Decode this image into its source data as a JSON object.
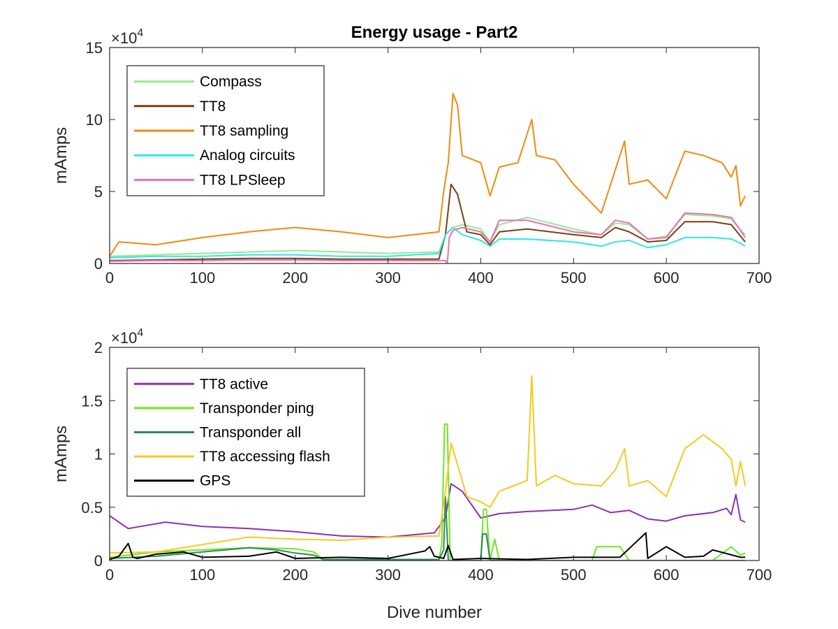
{
  "chart_data": [
    {
      "type": "line",
      "title": "Energy usage - Part2",
      "xlabel": "",
      "ylabel": "mAmps",
      "xlim": [
        0,
        700
      ],
      "ylim": [
        0,
        150000
      ],
      "xticks": [
        0,
        100,
        200,
        300,
        400,
        500,
        600,
        700
      ],
      "xtick_labels": [
        "0",
        "100",
        "200",
        "300",
        "400",
        "500",
        "600",
        "700"
      ],
      "yticks": [
        0,
        50000,
        100000,
        150000
      ],
      "ytick_labels": [
        "0",
        "5",
        "10",
        "15"
      ],
      "exponent_label": "×10",
      "exponent_power": "4",
      "legend_position": "top-left",
      "series": [
        {
          "name": "Compass",
          "color": "#90ee90",
          "x": [
            0,
            50,
            100,
            150,
            200,
            250,
            300,
            355,
            362,
            370,
            380,
            400,
            410,
            420,
            450,
            500,
            530,
            545,
            560,
            580,
            600,
            620,
            650,
            670,
            680,
            685
          ],
          "y": [
            5000,
            6000,
            7000,
            8000,
            9000,
            8000,
            7000,
            8000,
            20000,
            25000,
            27000,
            24000,
            15000,
            27000,
            32000,
            24000,
            20000,
            28000,
            27000,
            17000,
            19000,
            34000,
            33000,
            31000,
            23000,
            20000
          ]
        },
        {
          "name": "TT8",
          "color": "#7b3f10",
          "x": [
            0,
            50,
            100,
            150,
            200,
            250,
            300,
            355,
            362,
            368,
            375,
            385,
            400,
            410,
            420,
            450,
            500,
            530,
            545,
            560,
            580,
            600,
            620,
            650,
            670,
            680,
            685
          ],
          "y": [
            2000,
            2500,
            3000,
            3500,
            3500,
            3000,
            3000,
            3000,
            20000,
            55000,
            48000,
            22000,
            20000,
            13000,
            22000,
            24000,
            20000,
            18000,
            25000,
            22000,
            15000,
            16000,
            29000,
            29000,
            27000,
            19000,
            15000
          ]
        },
        {
          "name": "TT8 sampling",
          "color": "#f08a10",
          "x": [
            0,
            10,
            50,
            100,
            150,
            200,
            250,
            300,
            355,
            360,
            365,
            370,
            375,
            380,
            400,
            410,
            420,
            440,
            455,
            460,
            480,
            500,
            530,
            540,
            555,
            560,
            580,
            600,
            620,
            640,
            660,
            670,
            675,
            680,
            685
          ],
          "y": [
            5000,
            15000,
            13000,
            18000,
            22000,
            25000,
            22000,
            18000,
            22000,
            50000,
            70000,
            118000,
            110000,
            75000,
            70000,
            47000,
            67000,
            70000,
            100000,
            75000,
            72000,
            55000,
            35000,
            55000,
            85000,
            55000,
            58000,
            45000,
            78000,
            75000,
            70000,
            60000,
            68000,
            40000,
            47000
          ]
        },
        {
          "name": "Analog circuits",
          "color": "#2ee6ec",
          "x": [
            0,
            50,
            100,
            150,
            200,
            250,
            300,
            355,
            362,
            370,
            380,
            400,
            410,
            420,
            450,
            500,
            530,
            545,
            560,
            580,
            600,
            620,
            650,
            670,
            680,
            685
          ],
          "y": [
            4000,
            5000,
            5000,
            6000,
            6000,
            5000,
            5000,
            7000,
            20000,
            25000,
            20000,
            16000,
            12000,
            17000,
            17000,
            15000,
            12000,
            15000,
            16000,
            11000,
            13000,
            18000,
            18000,
            17000,
            14000,
            12000
          ]
        },
        {
          "name": "TT8 LPSleep",
          "color": "#ee6fb4",
          "x": [
            0,
            50,
            100,
            150,
            200,
            250,
            300,
            362,
            364,
            366,
            370,
            380,
            400,
            410,
            420,
            450,
            500,
            530,
            545,
            560,
            580,
            600,
            620,
            650,
            670,
            680,
            685
          ],
          "y": [
            1500,
            2000,
            2000,
            2500,
            2500,
            2000,
            2000,
            2000,
            0,
            18000,
            23000,
            25000,
            22000,
            15000,
            30000,
            30000,
            22000,
            20000,
            30000,
            28000,
            17000,
            18000,
            35000,
            34000,
            32000,
            23000,
            18000
          ]
        }
      ]
    },
    {
      "type": "line",
      "title": "",
      "xlabel": "Dive number",
      "ylabel": "mAmps",
      "xlim": [
        0,
        700
      ],
      "ylim": [
        0,
        20000
      ],
      "xticks": [
        0,
        100,
        200,
        300,
        400,
        500,
        600,
        700
      ],
      "xtick_labels": [
        "0",
        "100",
        "200",
        "300",
        "400",
        "500",
        "600",
        "700"
      ],
      "yticks": [
        0,
        5000,
        10000,
        15000,
        20000
      ],
      "ytick_labels": [
        "0",
        "0.5",
        "1",
        "1.5",
        "2"
      ],
      "exponent_label": "×10",
      "exponent_power": "4",
      "legend_position": "top-left",
      "series": [
        {
          "name": "TT8 active",
          "color": "#8e2fb8",
          "x": [
            0,
            20,
            60,
            100,
            150,
            200,
            250,
            300,
            350,
            362,
            368,
            380,
            400,
            410,
            420,
            450,
            500,
            520,
            540,
            560,
            580,
            600,
            620,
            650,
            665,
            670,
            675,
            680,
            685
          ],
          "y": [
            4200,
            3000,
            3600,
            3200,
            3000,
            2700,
            2300,
            2200,
            2600,
            4000,
            7200,
            6500,
            4000,
            4200,
            4400,
            4600,
            4800,
            5200,
            4500,
            4700,
            3900,
            3700,
            4200,
            4500,
            4900,
            4300,
            6200,
            3800,
            3600
          ]
        },
        {
          "name": "Transponder ping",
          "color": "#6ee81f",
          "x": [
            0,
            50,
            100,
            150,
            200,
            220,
            230,
            300,
            355,
            358,
            361,
            364,
            367,
            400,
            403,
            406,
            410,
            415,
            420,
            520,
            525,
            550,
            560,
            600,
            650,
            670,
            680,
            685
          ],
          "y": [
            300,
            800,
            1000,
            1200,
            1100,
            800,
            100,
            100,
            100,
            1500,
            12800,
            12800,
            0,
            0,
            4800,
            4800,
            0,
            2000,
            0,
            0,
            1300,
            1300,
            0,
            0,
            0,
            1300,
            500,
            700
          ]
        },
        {
          "name": "Transponder all",
          "color": "#2e8a57",
          "x": [
            0,
            50,
            100,
            150,
            180,
            200,
            220,
            230,
            300,
            355,
            360,
            362,
            365,
            400,
            402,
            406,
            410,
            420,
            685
          ],
          "y": [
            200,
            400,
            800,
            1200,
            1000,
            700,
            500,
            100,
            100,
            100,
            1000,
            6000,
            0,
            0,
            2500,
            2500,
            0,
            0,
            0
          ]
        },
        {
          "name": "TT8 accessing flash",
          "color": "#fbc81e",
          "x": [
            0,
            50,
            100,
            150,
            200,
            250,
            300,
            355,
            362,
            368,
            375,
            385,
            400,
            410,
            420,
            450,
            455,
            460,
            480,
            500,
            530,
            545,
            555,
            560,
            580,
            600,
            620,
            640,
            660,
            670,
            675,
            680,
            685
          ],
          "y": [
            700,
            800,
            1500,
            2200,
            2000,
            1900,
            2200,
            2300,
            6500,
            11000,
            9000,
            6000,
            5500,
            5000,
            6500,
            7500,
            17300,
            7000,
            8000,
            7200,
            7000,
            8500,
            10500,
            7000,
            7500,
            6000,
            10500,
            11800,
            10500,
            9500,
            7000,
            9300,
            7000
          ]
        },
        {
          "name": "GPS",
          "color": "#000000",
          "x": [
            0,
            10,
            20,
            25,
            30,
            50,
            80,
            100,
            150,
            180,
            200,
            250,
            300,
            340,
            345,
            350,
            360,
            365,
            370,
            400,
            450,
            500,
            550,
            578,
            580,
            600,
            620,
            640,
            650,
            680,
            685
          ],
          "y": [
            100,
            400,
            1600,
            300,
            200,
            600,
            800,
            300,
            400,
            800,
            200,
            300,
            200,
            900,
            1300,
            400,
            200,
            1400,
            100,
            200,
            100,
            300,
            300,
            2600,
            200,
            1300,
            300,
            400,
            1000,
            300,
            300
          ]
        }
      ]
    }
  ]
}
